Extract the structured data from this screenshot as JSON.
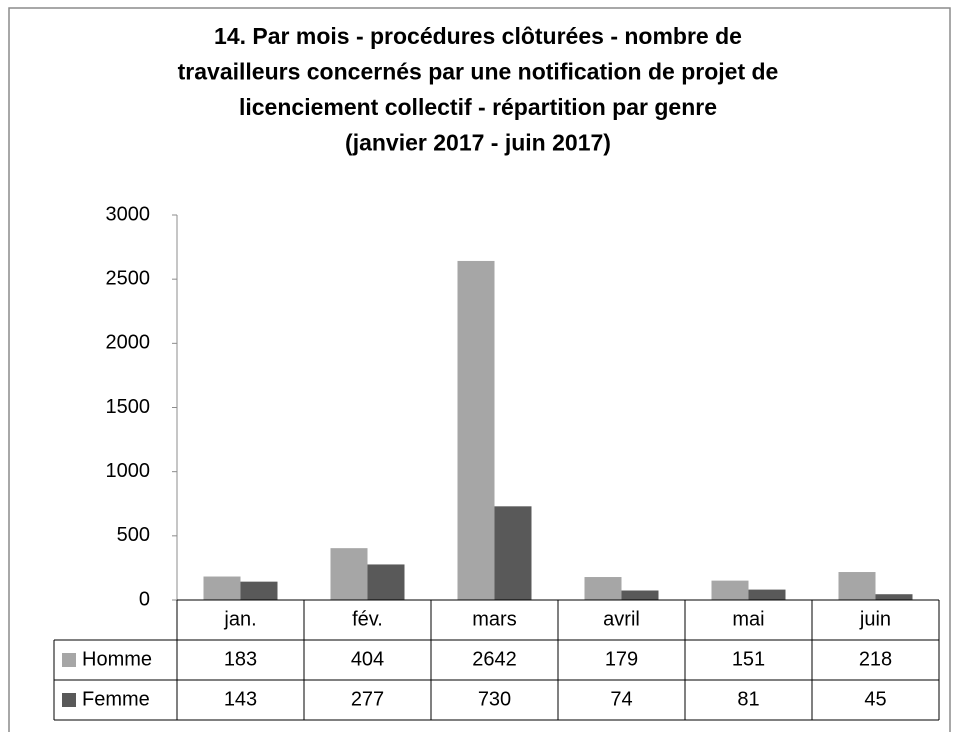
{
  "chart_data": {
    "type": "bar",
    "title": [
      "14. Par mois - procédures clôturées - nombre de",
      "travailleurs concernés par une notification de projet de",
      "licenciement collectif - répartition par genre",
      "(janvier 2017 - juin 2017)"
    ],
    "categories": [
      "jan.",
      "fév.",
      "mars",
      "avril",
      "mai",
      "juin"
    ],
    "series": [
      {
        "name": "Homme",
        "color": "#a6a6a6",
        "values": [
          183,
          404,
          2642,
          179,
          151,
          218
        ]
      },
      {
        "name": "Femme",
        "color": "#595959",
        "values": [
          143,
          277,
          730,
          74,
          81,
          45
        ]
      }
    ],
    "ylim": [
      0,
      3000
    ],
    "yticks": [
      0,
      500,
      1000,
      1500,
      2000,
      2500,
      3000
    ],
    "grid": false,
    "data_table": true
  }
}
